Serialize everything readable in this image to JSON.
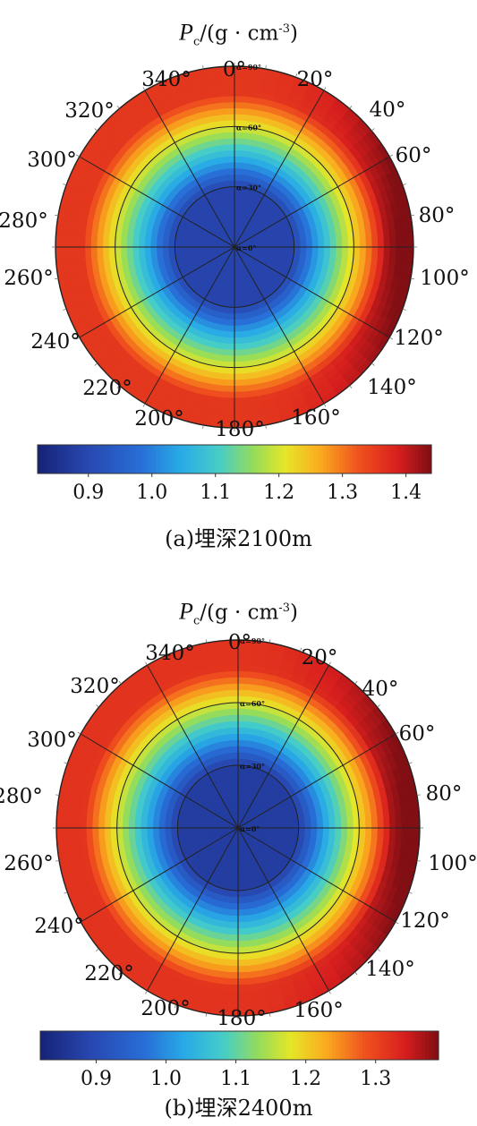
{
  "chart_data": [
    {
      "type": "heatmap",
      "subtype": "polar-contour",
      "panel_label": "(a)埋深2100m",
      "title": {
        "symbol": "P",
        "subscript": "c",
        "unit_prefix": "/(g · cm",
        "superscript": "-3",
        "unit_suffix": ")"
      },
      "azimuth_labels": [
        "0°",
        "20°",
        "40°",
        "60°",
        "80°",
        "100°",
        "120°",
        "140°",
        "160°",
        "180°",
        "200°",
        "220°",
        "240°",
        "260°",
        "280°",
        "300°",
        "320°",
        "340°"
      ],
      "ring_labels": [
        "α=0°",
        "α=30°",
        "α=60°",
        "α=90°"
      ],
      "colorbar": {
        "range": [
          0.82,
          1.44
        ],
        "ticks": [
          0.9,
          1.0,
          1.1,
          1.2,
          1.3,
          1.4
        ],
        "tick_labels": [
          "0.9",
          "1.0",
          "1.1",
          "1.2",
          "1.3",
          "1.4"
        ]
      },
      "field": {
        "center": 0.89,
        "edge": 1.36,
        "max_east": 1.43,
        "east_boost_deg": 50
      }
    },
    {
      "type": "heatmap",
      "subtype": "polar-contour",
      "panel_label": "(b)埋深2400m",
      "title": {
        "symbol": "P",
        "subscript": "c",
        "unit_prefix": "/(g · cm",
        "superscript": "-3",
        "unit_suffix": ")"
      },
      "azimuth_labels": [
        "0°",
        "20°",
        "40°",
        "60°",
        "80°",
        "100°",
        "120°",
        "140°",
        "160°",
        "180°",
        "200°",
        "220°",
        "240°",
        "260°",
        "280°",
        "300°",
        "320°",
        "340°"
      ],
      "ring_labels": [
        "α=0°",
        "α=30°",
        "α=60°",
        "α=90°"
      ],
      "colorbar": {
        "range": [
          0.82,
          1.39
        ],
        "ticks": [
          0.9,
          1.0,
          1.1,
          1.2,
          1.3
        ],
        "tick_labels": [
          "0.9",
          "1.0",
          "1.1",
          "1.2",
          "1.3"
        ]
      },
      "field": {
        "center": 0.87,
        "edge": 1.32,
        "max_east": 1.38,
        "east_boost_deg": 55
      }
    }
  ]
}
